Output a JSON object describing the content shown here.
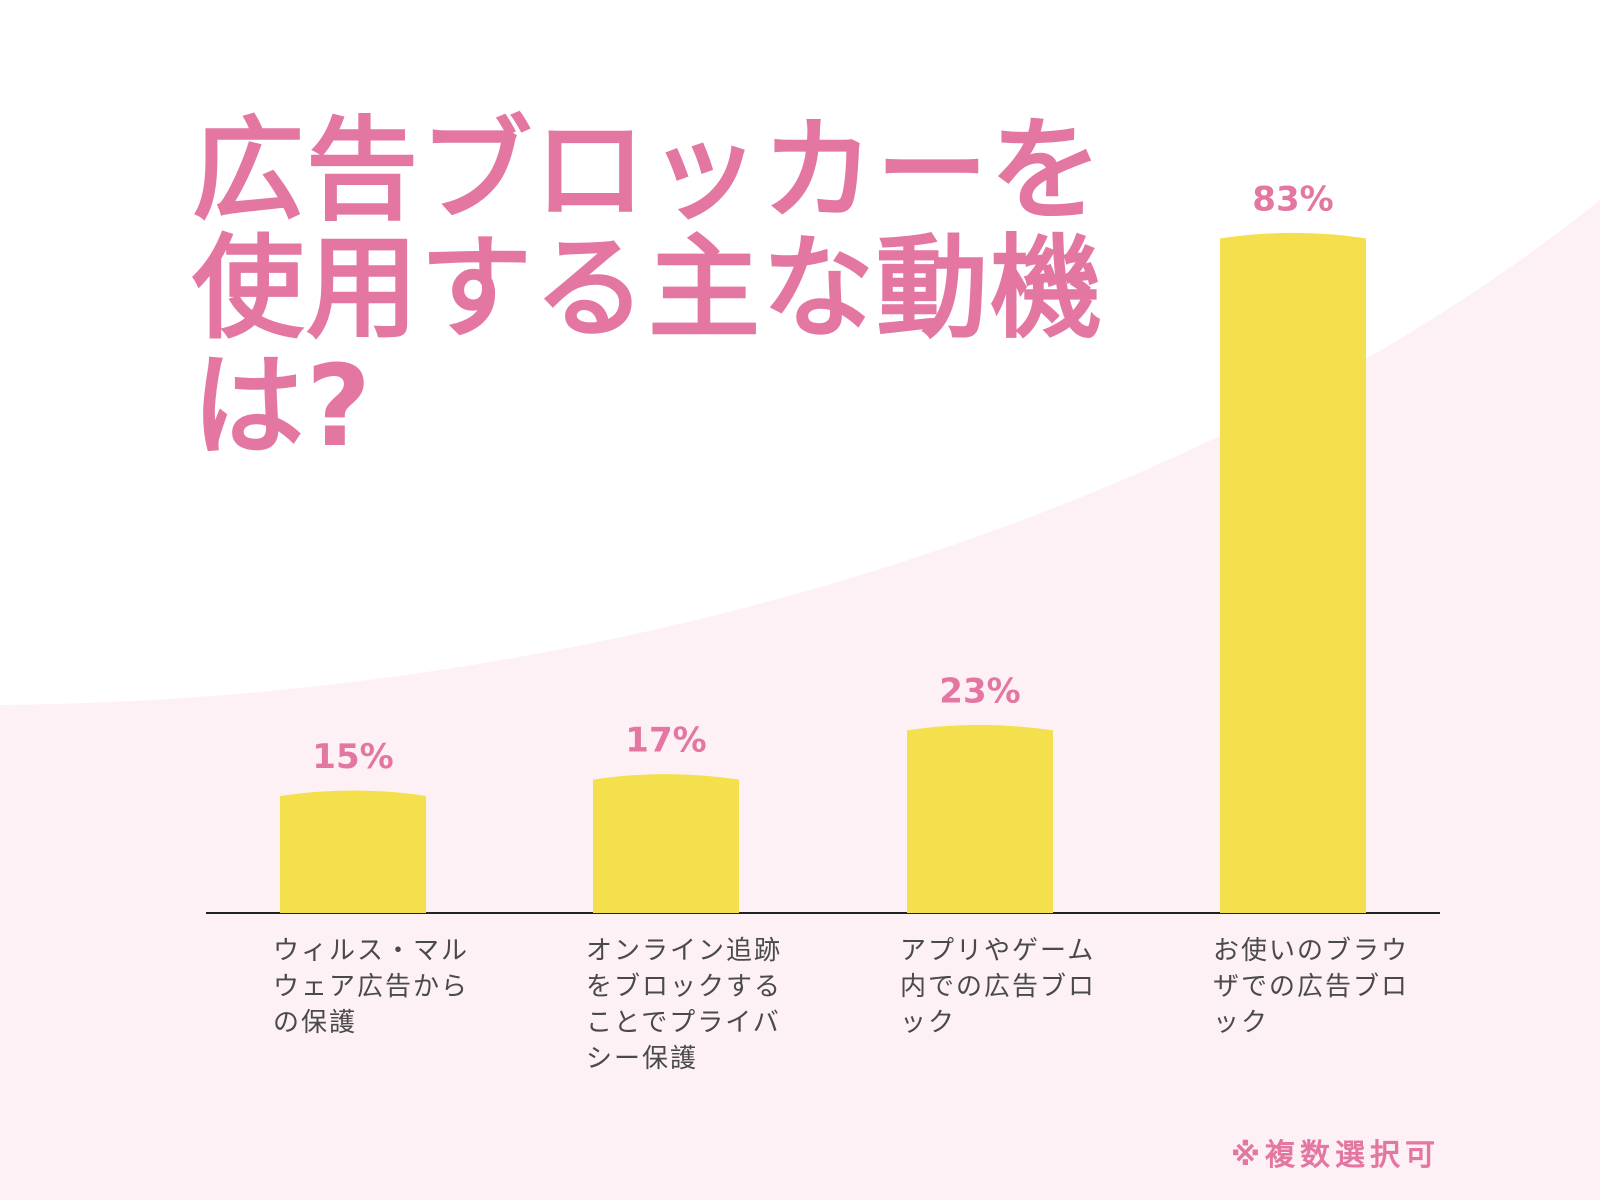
{
  "colors": {
    "accent": "#E377A1",
    "bar": "#F4E04D",
    "background_curve": "#FDF1F6",
    "axis": "#222222",
    "category_text": "#4a4a4a"
  },
  "footnote": "※複数選択可",
  "chart_data": {
    "type": "bar",
    "title": "広告ブロッカーを使用する主な動機は?",
    "categories": [
      "ウィルス・マルウェア広告からの保護",
      "オンライン追跡をブロックすることでプライバシー保護",
      "アプリやゲーム内での広告ブロック",
      "お使いのブラウザでの広告ブロック"
    ],
    "values": [
      15,
      17,
      23,
      83
    ],
    "value_labels": [
      "15%",
      "17%",
      "23%",
      "83%"
    ],
    "unit": "%",
    "ylim": [
      0,
      100
    ],
    "grid": false,
    "legend": "none"
  }
}
